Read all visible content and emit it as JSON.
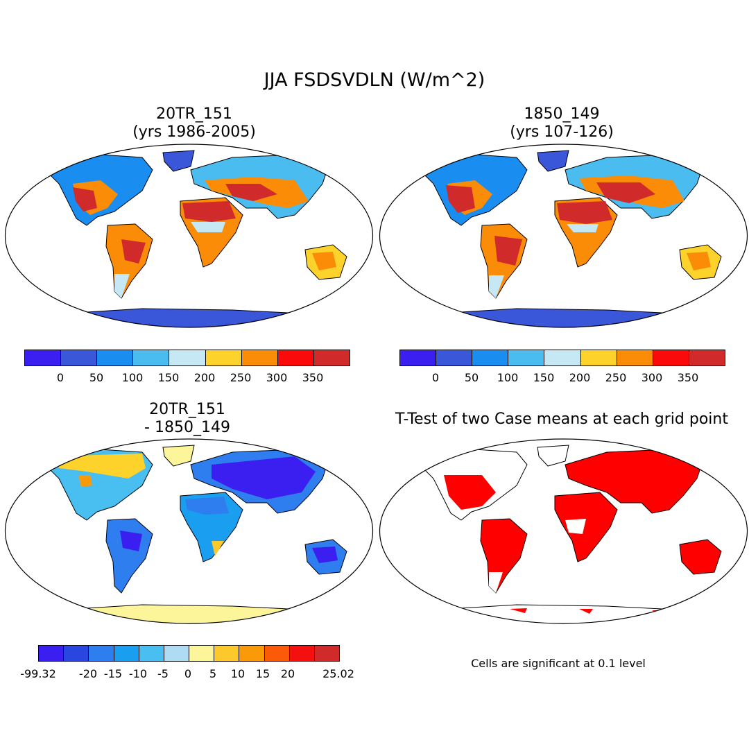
{
  "main_title": "JJA FSDSVDLN (W/m^2)",
  "panels": {
    "top_left": {
      "title_line1": "20TR_151",
      "title_line2": "(yrs 1986-2005)"
    },
    "top_right": {
      "title_line1": "1850_149",
      "title_line2": "(yrs 107-126)"
    },
    "bottom_left": {
      "title_line1": "20TR_151",
      "title_line2": "- 1850_149"
    },
    "bottom_right": {
      "title": "T-Test of two Case means at each grid point",
      "note": "Cells are significant at 0.1 level"
    }
  },
  "colorbar_abs": {
    "colors": [
      "#3b1ff0",
      "#3a56d9",
      "#1a8ef0",
      "#4bbcf0",
      "#c6e8f5",
      "#fdd22b",
      "#fb8c08",
      "#fa0a0a",
      "#d02a2a"
    ],
    "labels": [
      "0",
      "50",
      "100",
      "150",
      "200",
      "250",
      "300",
      "350"
    ]
  },
  "colorbar_diff": {
    "colors": [
      "#3b1ff0",
      "#2a46e0",
      "#2f7ef0",
      "#1a9ef0",
      "#48bff0",
      "#aedcf5",
      "#fdf59a",
      "#fdc82b",
      "#fb9a08",
      "#fb5a08",
      "#f51010",
      "#d02a2a"
    ],
    "labels": [
      "-99.32",
      "-20",
      "-15",
      "-10",
      "-5",
      "0",
      "5",
      "10",
      "15",
      "20",
      "25.02"
    ]
  },
  "legend_colors": {
    "ocean": "#ffffff",
    "significant": "#ff0000",
    "antarctica_abs": "#3a56d9",
    "antarctica_diff": "#fdf59a"
  }
}
